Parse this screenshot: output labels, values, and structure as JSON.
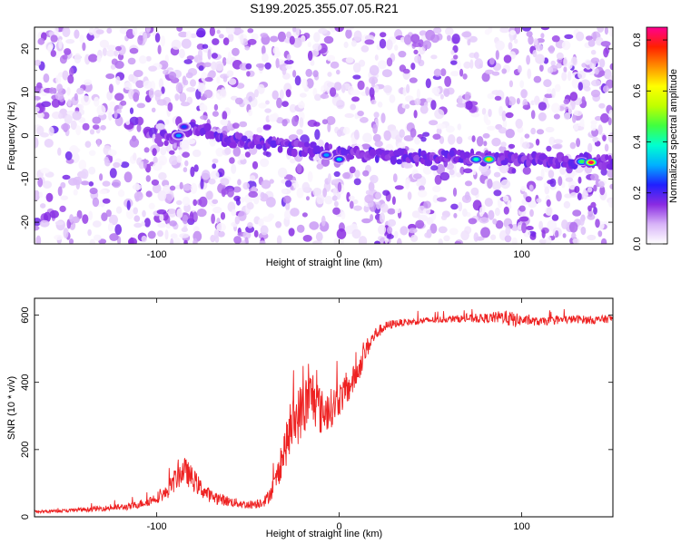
{
  "title": "S199.2025.355.07.05.R21",
  "chart_data": [
    {
      "type": "heatmap",
      "name": "spectrogram",
      "xlabel": "Height of straight line (km)",
      "ylabel": "Frequency (Hz)",
      "xlim": [
        -167,
        150
      ],
      "ylim": [
        -25,
        25
      ],
      "xticks": [
        -100,
        0,
        100
      ],
      "yticks": [
        -20,
        -10,
        0,
        10,
        20
      ],
      "signal_trace": {
        "x": [
          -100,
          -90,
          -85,
          -80,
          -60,
          -40,
          -20,
          0,
          20,
          40,
          60,
          80,
          100,
          120,
          140
        ],
        "y": [
          -1,
          0,
          1,
          2,
          -1,
          -2,
          -3,
          -4,
          -4.5,
          -5,
          -5,
          -5.2,
          -5.5,
          -5.8,
          -6
        ]
      },
      "hotspots": [
        {
          "x": -88,
          "y": 0,
          "amplitude": 0.3
        },
        {
          "x": -85,
          "y": 2,
          "amplitude": 0.25
        },
        {
          "x": -7,
          "y": -4.5,
          "amplitude": 0.3
        },
        {
          "x": 0,
          "y": -5.5,
          "amplitude": 0.35
        },
        {
          "x": 75,
          "y": -5.5,
          "amplitude": 0.4
        },
        {
          "x": 82,
          "y": -5.5,
          "amplitude": 0.65
        },
        {
          "x": 133,
          "y": -6,
          "amplitude": 0.45
        },
        {
          "x": 138,
          "y": -6.2,
          "amplitude": 0.82
        }
      ]
    },
    {
      "type": "colorbar",
      "name": "amplitude-colorbar",
      "label": "Normalized spectral amplitude",
      "range": [
        0,
        0.85
      ],
      "ticks": [
        "0.0",
        "0.2",
        "0.4",
        "0.6",
        "0.8"
      ],
      "colors": [
        "#ffffff",
        "#d8b4f8",
        "#8a2be2",
        "#2020ff",
        "#00b0ff",
        "#00ffd0",
        "#40ff40",
        "#c0ff00",
        "#ffff00",
        "#ff9000",
        "#ff2000",
        "#ff0090"
      ]
    },
    {
      "type": "line",
      "name": "snr",
      "xlabel": "Height of straight line (km)",
      "ylabel": "SNR (10 * v/v)",
      "xlim": [
        -167,
        150
      ],
      "ylim": [
        0,
        650
      ],
      "xticks": [
        -100,
        0,
        100
      ],
      "yticks": [
        0,
        200,
        400,
        600
      ],
      "color": "#ee2222",
      "x": [
        -167,
        -150,
        -130,
        -115,
        -105,
        -95,
        -90,
        -85,
        -80,
        -75,
        -70,
        -60,
        -50,
        -45,
        -40,
        -35,
        -30,
        -25,
        -20,
        -15,
        -12,
        -10,
        -5,
        0,
        5,
        10,
        15,
        20,
        25,
        30,
        40,
        50,
        60,
        70,
        80,
        90,
        95,
        100,
        110,
        120,
        130,
        140,
        150
      ],
      "y": [
        15,
        18,
        25,
        30,
        45,
        70,
        110,
        140,
        110,
        80,
        60,
        45,
        35,
        40,
        50,
        100,
        200,
        280,
        320,
        360,
        340,
        310,
        320,
        350,
        380,
        430,
        500,
        545,
        565,
        575,
        580,
        585,
        588,
        590,
        590,
        595,
        585,
        585,
        580,
        585,
        588,
        585,
        590
      ],
      "noise": [
        4,
        5,
        8,
        10,
        14,
        20,
        35,
        40,
        35,
        25,
        20,
        15,
        12,
        15,
        18,
        35,
        60,
        80,
        90,
        90,
        80,
        70,
        60,
        50,
        45,
        40,
        30,
        20,
        15,
        12,
        10,
        10,
        10,
        12,
        14,
        20,
        25,
        15,
        12,
        12,
        12,
        12,
        12
      ]
    }
  ]
}
